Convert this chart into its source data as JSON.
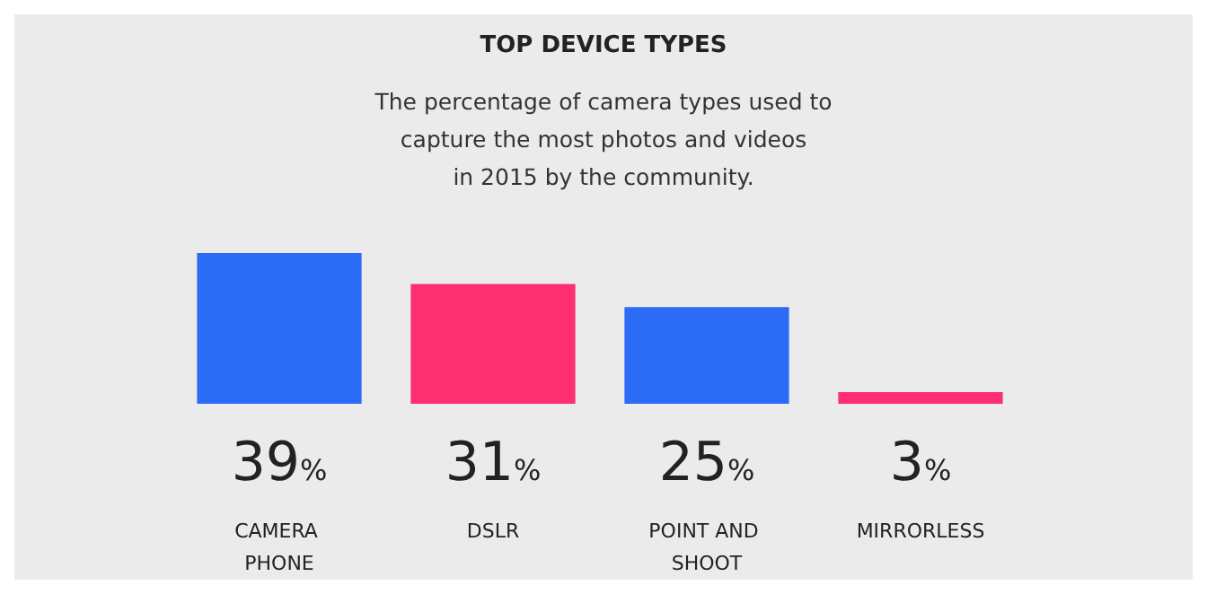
{
  "chart_data": {
    "type": "bar",
    "title": "TOP DEVICE TYPES",
    "subtitle": "The percentage of camera types used to\ncapture the most photos and videos\nin 2015 by the community.",
    "categories": [
      "CAMERA PHONE",
      "DSLR",
      "POINT AND SHOOT",
      "MIRRORLESS"
    ],
    "values": [
      39,
      31,
      25,
      3
    ],
    "colors": [
      "#2b6bf6",
      "#fc2f72",
      "#2b6bf6",
      "#fc2f72"
    ],
    "value_labels": [
      "39%",
      "31%",
      "25%",
      "3%"
    ],
    "grid": false
  }
}
